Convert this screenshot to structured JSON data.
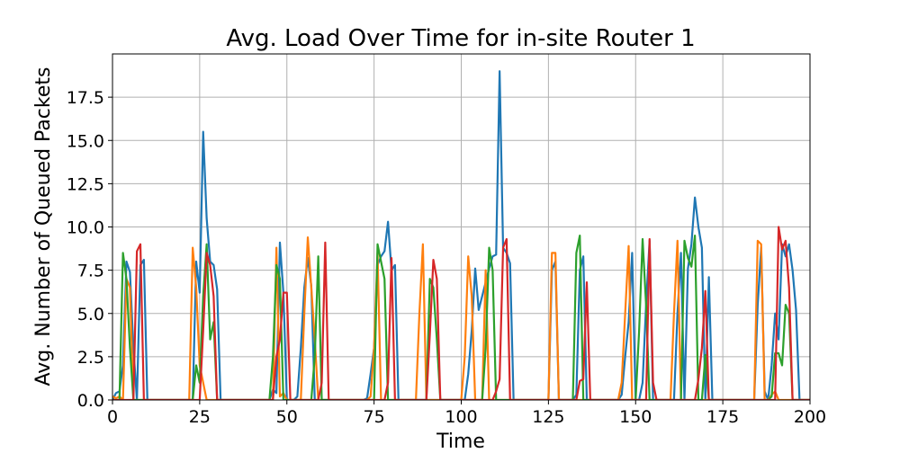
{
  "chart_data": {
    "type": "line",
    "title": "Avg. Load Over Time for in-site Router 1",
    "xlabel": "Time",
    "ylabel": "Avg. Number of Queued Packets",
    "xlim": [
      0,
      200
    ],
    "ylim": [
      0,
      20
    ],
    "xticks": [
      0,
      25,
      50,
      75,
      100,
      125,
      150,
      175,
      200
    ],
    "yticks": [
      0.0,
      2.5,
      5.0,
      7.5,
      10.0,
      12.5,
      15.0,
      17.5
    ],
    "xtick_labels": [
      "0",
      "25",
      "50",
      "75",
      "100",
      "125",
      "150",
      "175",
      "200"
    ],
    "ytick_labels": [
      "0.0",
      "2.5",
      "5.0",
      "7.5",
      "10.0",
      "12.5",
      "15.0",
      "17.5"
    ],
    "grid": true,
    "legend": "none",
    "series": [
      {
        "color": "#1f77b4",
        "points": [
          [
            0,
            0
          ],
          [
            1,
            0.4
          ],
          [
            2,
            0.5
          ],
          [
            3,
            2
          ],
          [
            4,
            8
          ],
          [
            5,
            7.4
          ],
          [
            6,
            3
          ],
          [
            7,
            0
          ],
          [
            8,
            7.8
          ],
          [
            9,
            8.1
          ],
          [
            10,
            0
          ],
          [
            22,
            0
          ],
          [
            23,
            0
          ],
          [
            24,
            8
          ],
          [
            25,
            6.2
          ],
          [
            26,
            15.5
          ],
          [
            27,
            10.5
          ],
          [
            28,
            8
          ],
          [
            29,
            7.8
          ],
          [
            30,
            6.4
          ],
          [
            31,
            0
          ],
          [
            45,
            0
          ],
          [
            46,
            0.6
          ],
          [
            47,
            0.4
          ],
          [
            48,
            9.1
          ],
          [
            49,
            6.2
          ],
          [
            50,
            0
          ],
          [
            52,
            0
          ],
          [
            53,
            0.2
          ],
          [
            54,
            3
          ],
          [
            55,
            6.5
          ],
          [
            56,
            8.2
          ],
          [
            57,
            6.6
          ],
          [
            58,
            0
          ],
          [
            72,
            0
          ],
          [
            73,
            0.1
          ],
          [
            74,
            1.5
          ],
          [
            75,
            3
          ],
          [
            76,
            7.8
          ],
          [
            77,
            8.3
          ],
          [
            78,
            8.6
          ],
          [
            79,
            10.3
          ],
          [
            80,
            7.5
          ],
          [
            81,
            7.8
          ],
          [
            82,
            0
          ],
          [
            90,
            0
          ],
          [
            101,
            0
          ],
          [
            102,
            1.5
          ],
          [
            103,
            4
          ],
          [
            104,
            7.6
          ],
          [
            105,
            5.2
          ],
          [
            106,
            6
          ],
          [
            107,
            6.8
          ],
          [
            108,
            7.6
          ],
          [
            109,
            8.3
          ],
          [
            110,
            8.4
          ],
          [
            111,
            19
          ],
          [
            112,
            8.8
          ],
          [
            113,
            8.5
          ],
          [
            114,
            7.9
          ],
          [
            115,
            0
          ],
          [
            125,
            0
          ],
          [
            126,
            7.5
          ],
          [
            127,
            8
          ],
          [
            128,
            0
          ],
          [
            132,
            0
          ],
          [
            133,
            0.3
          ],
          [
            134,
            7.5
          ],
          [
            135,
            8.3
          ],
          [
            136,
            0
          ],
          [
            145,
            0
          ],
          [
            146,
            0.3
          ],
          [
            147,
            2.5
          ],
          [
            148,
            4.5
          ],
          [
            149,
            8.5
          ],
          [
            150,
            0
          ],
          [
            151,
            0
          ],
          [
            152,
            1
          ],
          [
            153,
            5.5
          ],
          [
            154,
            9.2
          ],
          [
            155,
            0
          ],
          [
            161,
            0
          ],
          [
            162,
            5
          ],
          [
            163,
            8.5
          ],
          [
            164,
            0
          ],
          [
            165,
            7.6
          ],
          [
            166,
            9
          ],
          [
            167,
            11.7
          ],
          [
            168,
            10
          ],
          [
            169,
            8.8
          ],
          [
            170,
            0
          ],
          [
            171,
            7.1
          ],
          [
            172,
            0
          ],
          [
            184,
            0
          ],
          [
            185,
            5.5
          ],
          [
            186,
            8.8
          ],
          [
            187,
            0.5
          ],
          [
            188,
            0
          ],
          [
            189,
            2
          ],
          [
            190,
            5
          ],
          [
            191,
            3.5
          ],
          [
            192,
            9
          ],
          [
            193,
            8.3
          ],
          [
            194,
            9
          ],
          [
            195,
            7.5
          ],
          [
            196,
            5.2
          ],
          [
            197,
            0
          ],
          [
            200,
            0
          ]
        ]
      },
      {
        "color": "#ff7f0e",
        "points": [
          [
            0,
            0.2
          ],
          [
            1,
            0.1
          ],
          [
            2,
            0.2
          ],
          [
            3,
            0
          ],
          [
            4,
            7
          ],
          [
            5,
            6.5
          ],
          [
            6,
            0
          ],
          [
            10,
            0
          ],
          [
            22,
            0
          ],
          [
            23,
            8.8
          ],
          [
            24,
            6.5
          ],
          [
            25,
            2
          ],
          [
            26,
            1
          ],
          [
            27,
            0
          ],
          [
            45,
            0
          ],
          [
            46,
            0
          ],
          [
            47,
            8.8
          ],
          [
            48,
            0.2
          ],
          [
            49,
            0.4
          ],
          [
            50,
            0
          ],
          [
            54,
            0
          ],
          [
            55,
            5
          ],
          [
            56,
            9.4
          ],
          [
            57,
            6.5
          ],
          [
            58,
            3.5
          ],
          [
            59,
            0
          ],
          [
            72,
            0
          ],
          [
            73,
            0
          ],
          [
            74,
            0.2
          ],
          [
            75,
            3
          ],
          [
            76,
            8.5
          ],
          [
            77,
            0
          ],
          [
            87,
            0
          ],
          [
            88,
            5
          ],
          [
            89,
            9
          ],
          [
            90,
            0
          ],
          [
            100,
            0
          ],
          [
            101,
            2.5
          ],
          [
            102,
            8.3
          ],
          [
            103,
            6
          ],
          [
            104,
            0
          ],
          [
            106,
            0
          ],
          [
            107,
            7.5
          ],
          [
            108,
            0
          ],
          [
            125,
            0
          ],
          [
            126,
            8.5
          ],
          [
            127,
            8.5
          ],
          [
            128,
            0
          ],
          [
            145,
            0
          ],
          [
            146,
            1
          ],
          [
            147,
            5
          ],
          [
            148,
            8.9
          ],
          [
            149,
            0
          ],
          [
            160,
            0
          ],
          [
            161,
            5
          ],
          [
            162,
            9.2
          ],
          [
            163,
            0
          ],
          [
            184,
            0
          ],
          [
            185,
            9.2
          ],
          [
            186,
            9
          ],
          [
            187,
            0
          ],
          [
            188,
            0
          ],
          [
            189,
            0.3
          ],
          [
            190,
            0.5
          ],
          [
            191,
            0
          ],
          [
            200,
            0
          ]
        ]
      },
      {
        "color": "#2ca02c",
        "points": [
          [
            0,
            0
          ],
          [
            2,
            0
          ],
          [
            3,
            8.5
          ],
          [
            4,
            7
          ],
          [
            5,
            3
          ],
          [
            6,
            0
          ],
          [
            22,
            0
          ],
          [
            23,
            0
          ],
          [
            24,
            2
          ],
          [
            25,
            1
          ],
          [
            26,
            6
          ],
          [
            27,
            9
          ],
          [
            28,
            3.5
          ],
          [
            29,
            4.5
          ],
          [
            30,
            0
          ],
          [
            45,
            0
          ],
          [
            46,
            2.5
          ],
          [
            47,
            7.8
          ],
          [
            48,
            7
          ],
          [
            49,
            0
          ],
          [
            57,
            0
          ],
          [
            58,
            2.5
          ],
          [
            59,
            8.3
          ],
          [
            60,
            0
          ],
          [
            75,
            0
          ],
          [
            76,
            9
          ],
          [
            77,
            8
          ],
          [
            78,
            7
          ],
          [
            79,
            0
          ],
          [
            87,
            0
          ],
          [
            90,
            0
          ],
          [
            91,
            7
          ],
          [
            92,
            6.5
          ],
          [
            93,
            3.5
          ],
          [
            94,
            0
          ],
          [
            106,
            0
          ],
          [
            107,
            3
          ],
          [
            108,
            8.8
          ],
          [
            109,
            7.5
          ],
          [
            110,
            0
          ],
          [
            132,
            0
          ],
          [
            133,
            8.5
          ],
          [
            134,
            9.5
          ],
          [
            135,
            0
          ],
          [
            150,
            0
          ],
          [
            151,
            4
          ],
          [
            152,
            9.3
          ],
          [
            153,
            5.5
          ],
          [
            154,
            0
          ],
          [
            163,
            0
          ],
          [
            164,
            9.2
          ],
          [
            165,
            8.2
          ],
          [
            166,
            7.7
          ],
          [
            167,
            9.5
          ],
          [
            168,
            0
          ],
          [
            169,
            0
          ],
          [
            170,
            2.6
          ],
          [
            171,
            0
          ],
          [
            188,
            0
          ],
          [
            189,
            0.2
          ],
          [
            190,
            2.7
          ],
          [
            191,
            2.7
          ],
          [
            192,
            2
          ],
          [
            193,
            5.5
          ],
          [
            194,
            5
          ],
          [
            195,
            0
          ],
          [
            200,
            0
          ]
        ]
      },
      {
        "color": "#d62728",
        "points": [
          [
            0,
            0
          ],
          [
            6,
            0
          ],
          [
            7,
            8.6
          ],
          [
            8,
            9
          ],
          [
            9,
            0
          ],
          [
            25,
            0
          ],
          [
            26,
            4
          ],
          [
            27,
            8.5
          ],
          [
            28,
            7.8
          ],
          [
            29,
            6
          ],
          [
            30,
            0
          ],
          [
            46,
            0
          ],
          [
            47,
            2.5
          ],
          [
            48,
            3.5
          ],
          [
            49,
            6.2
          ],
          [
            50,
            6.2
          ],
          [
            51,
            0
          ],
          [
            59,
            0
          ],
          [
            60,
            1
          ],
          [
            61,
            9.1
          ],
          [
            62,
            0
          ],
          [
            77,
            0
          ],
          [
            78,
            0
          ],
          [
            79,
            1
          ],
          [
            80,
            8.2
          ],
          [
            81,
            0
          ],
          [
            90,
            0
          ],
          [
            91,
            3.8
          ],
          [
            92,
            8.1
          ],
          [
            93,
            7
          ],
          [
            94,
            0
          ],
          [
            109,
            0
          ],
          [
            110,
            0.5
          ],
          [
            111,
            1.2
          ],
          [
            112,
            8.8
          ],
          [
            113,
            9.3
          ],
          [
            114,
            0
          ],
          [
            133,
            0
          ],
          [
            134,
            1.1
          ],
          [
            135,
            1.2
          ],
          [
            136,
            6.8
          ],
          [
            137,
            0
          ],
          [
            153,
            0
          ],
          [
            154,
            9.3
          ],
          [
            155,
            1
          ],
          [
            156,
            0
          ],
          [
            167,
            0
          ],
          [
            168,
            1.2
          ],
          [
            169,
            3
          ],
          [
            170,
            6.3
          ],
          [
            171,
            0
          ],
          [
            190,
            0
          ],
          [
            191,
            10
          ],
          [
            192,
            8.7
          ],
          [
            193,
            9.2
          ],
          [
            194,
            6.5
          ],
          [
            195,
            0
          ],
          [
            200,
            0
          ]
        ]
      }
    ]
  }
}
